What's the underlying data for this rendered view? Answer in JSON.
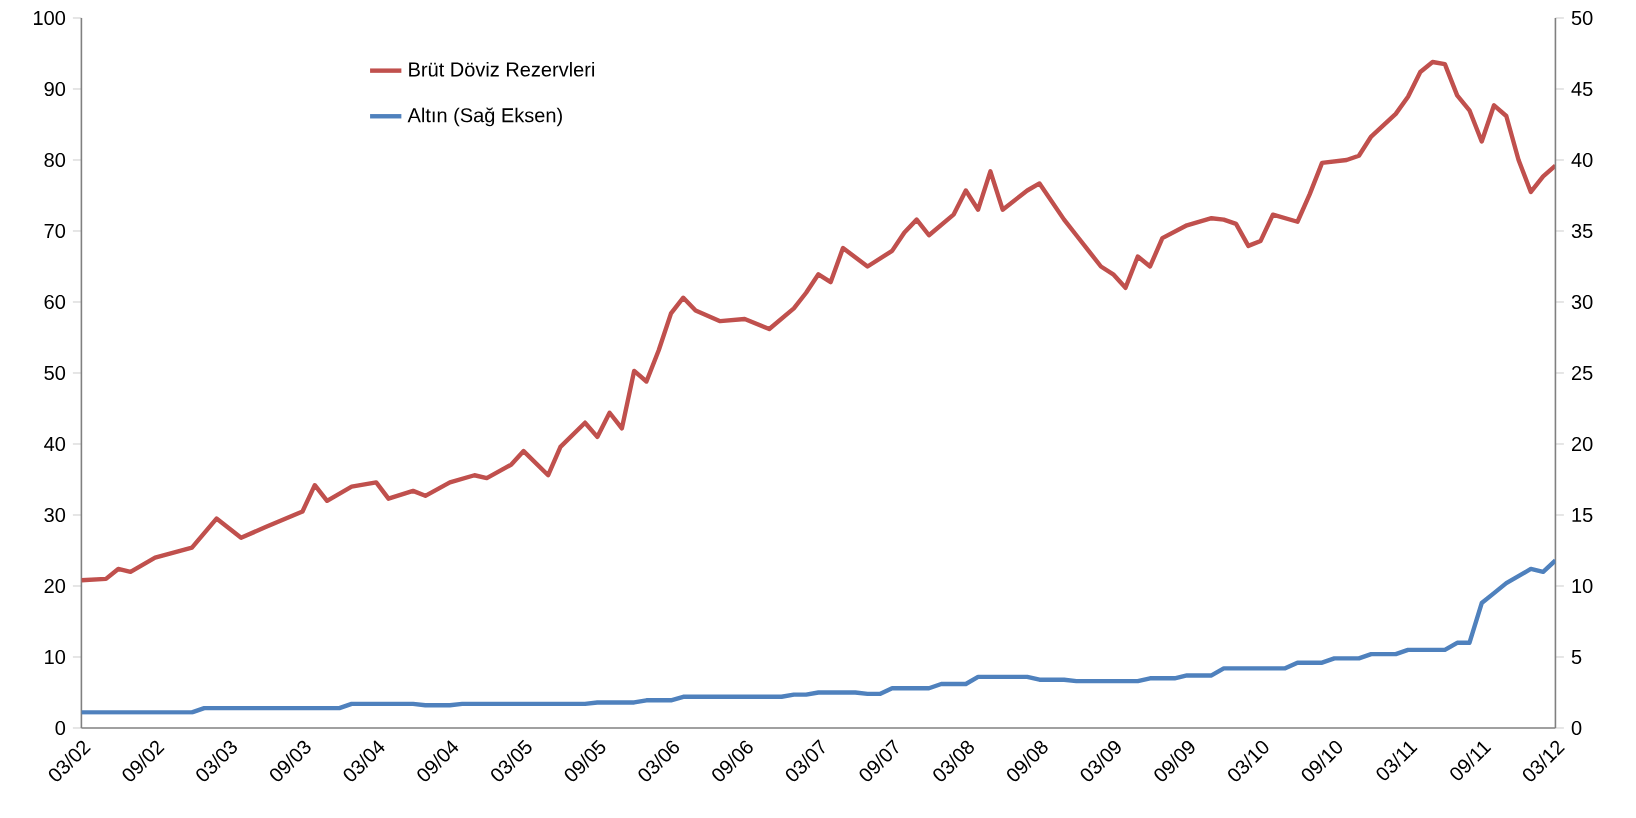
{
  "chart_data": {
    "type": "line",
    "xlim": [
      "2002-03",
      "2012-03"
    ],
    "xticks": [
      {
        "value": "2002-03",
        "label": "03/02"
      },
      {
        "value": "2002-09",
        "label": "09/02"
      },
      {
        "value": "2003-03",
        "label": "03/03"
      },
      {
        "value": "2003-09",
        "label": "09/03"
      },
      {
        "value": "2004-03",
        "label": "03/04"
      },
      {
        "value": "2004-09",
        "label": "09/04"
      },
      {
        "value": "2005-03",
        "label": "03/05"
      },
      {
        "value": "2005-09",
        "label": "09/05"
      },
      {
        "value": "2006-03",
        "label": "03/06"
      },
      {
        "value": "2006-09",
        "label": "09/06"
      },
      {
        "value": "2007-03",
        "label": "03/07"
      },
      {
        "value": "2007-09",
        "label": "09/07"
      },
      {
        "value": "2008-03",
        "label": "03/08"
      },
      {
        "value": "2008-09",
        "label": "09/08"
      },
      {
        "value": "2009-03",
        "label": "03/09"
      },
      {
        "value": "2009-09",
        "label": "09/09"
      },
      {
        "value": "2010-03",
        "label": "03/10"
      },
      {
        "value": "2010-09",
        "label": "09/10"
      },
      {
        "value": "2011-03",
        "label": "03/11"
      },
      {
        "value": "2011-09",
        "label": "09/11"
      },
      {
        "value": "2012-03",
        "label": "03/12"
      }
    ],
    "ylim": [
      0,
      100
    ],
    "yticks": [
      0,
      10,
      20,
      30,
      40,
      50,
      60,
      70,
      80,
      90,
      100
    ],
    "y2lim": [
      0,
      50
    ],
    "y2ticks": [
      0,
      5,
      10,
      15,
      20,
      25,
      30,
      35,
      40,
      45,
      50
    ],
    "legend": "top left",
    "series": [
      {
        "name": "Brüt Döviz Rezervleri",
        "color": "#c0504d",
        "axis": "y",
        "x": [
          "2002-03",
          "2002-05",
          "2002-06",
          "2002-07",
          "2002-09",
          "2002-12",
          "2003-02",
          "2003-04",
          "2003-06",
          "2003-09",
          "2003-10",
          "2003-11",
          "2004-01",
          "2004-03",
          "2004-04",
          "2004-06",
          "2004-07",
          "2004-09",
          "2004-11",
          "2004-12",
          "2005-02",
          "2005-03",
          "2005-05",
          "2005-06",
          "2005-08",
          "2005-09",
          "2005-10",
          "2005-11",
          "2005-12",
          "2006-01",
          "2006-02",
          "2006-03",
          "2006-04",
          "2006-05",
          "2006-07",
          "2006-09",
          "2006-11",
          "2007-01",
          "2007-02",
          "2007-03",
          "2007-04",
          "2007-05",
          "2007-07",
          "2007-09",
          "2007-10",
          "2007-11",
          "2007-12",
          "2008-02",
          "2008-03",
          "2008-04",
          "2008-05",
          "2008-06",
          "2008-08",
          "2008-09",
          "2008-11",
          "2008-12",
          "2009-01",
          "2009-02",
          "2009-03",
          "2009-04",
          "2009-05",
          "2009-06",
          "2009-07",
          "2009-09",
          "2009-11",
          "2009-12",
          "2010-01",
          "2010-02",
          "2010-03",
          "2010-04",
          "2010-06",
          "2010-07",
          "2010-08",
          "2010-10",
          "2010-11",
          "2010-12",
          "2011-02",
          "2011-03",
          "2011-04",
          "2011-05",
          "2011-06",
          "2011-07",
          "2011-08",
          "2011-09",
          "2011-10",
          "2011-11",
          "2011-12",
          "2012-01",
          "2012-02",
          "2012-03"
        ],
        "values": [
          20.8,
          21,
          22.4,
          22,
          24,
          25.4,
          29.5,
          26.8,
          28.3,
          30.5,
          34.2,
          32,
          34,
          34.6,
          32.3,
          33.4,
          32.7,
          34.6,
          35.6,
          35.2,
          37.1,
          39,
          35.6,
          39.6,
          43,
          41,
          44.4,
          42.2,
          50.3,
          48.8,
          53.2,
          58.4,
          60.6,
          58.8,
          57.3,
          57.6,
          56.2,
          59.1,
          61.3,
          63.9,
          62.8,
          67.6,
          65,
          67.2,
          69.8,
          71.6,
          69.4,
          72.3,
          75.7,
          73,
          78.4,
          73,
          75.7,
          76.7,
          71.6,
          69.4,
          67.2,
          65,
          63.9,
          62,
          66.4,
          65,
          69,
          70.8,
          71.8,
          71.6,
          71,
          67.9,
          68.6,
          72.3,
          71.3,
          75.2,
          79.6,
          80,
          80.6,
          83.3,
          86.5,
          88.9,
          92.4,
          93.8,
          93.5,
          89.1,
          87,
          82.6,
          87.7,
          86.2,
          80,
          75.5,
          77.7,
          79.2
        ]
      },
      {
        "name": "Altın (Sağ Eksen)",
        "color": "#4f81bd",
        "axis": "y2",
        "x": [
          "2002-03",
          "2002-12",
          "2003-01",
          "2003-12",
          "2004-01",
          "2004-06",
          "2004-07",
          "2004-09",
          "2004-10",
          "2005-08",
          "2005-09",
          "2005-12",
          "2006-01",
          "2006-03",
          "2006-04",
          "2006-12",
          "2007-01",
          "2007-02",
          "2007-03",
          "2007-06",
          "2007-07",
          "2007-08",
          "2007-09",
          "2007-12",
          "2008-01",
          "2008-03",
          "2008-04",
          "2008-08",
          "2008-09",
          "2008-11",
          "2008-12",
          "2009-05",
          "2009-06",
          "2009-08",
          "2009-09",
          "2009-11",
          "2009-12",
          "2010-05",
          "2010-06",
          "2010-08",
          "2010-09",
          "2010-11",
          "2010-12",
          "2011-02",
          "2011-03",
          "2011-06",
          "2011-07",
          "2011-08",
          "2011-09",
          "2011-10",
          "2011-11",
          "2012-01",
          "2012-02",
          "2012-03"
        ],
        "values": [
          1.1,
          1.1,
          1.4,
          1.4,
          1.7,
          1.7,
          1.6,
          1.6,
          1.7,
          1.7,
          1.8,
          1.8,
          1.95,
          1.95,
          2.2,
          2.2,
          2.35,
          2.35,
          2.5,
          2.5,
          2.4,
          2.4,
          2.8,
          2.8,
          3.1,
          3.1,
          3.6,
          3.6,
          3.4,
          3.4,
          3.3,
          3.3,
          3.5,
          3.5,
          3.7,
          3.7,
          4.2,
          4.2,
          4.6,
          4.6,
          4.9,
          4.9,
          5.2,
          5.2,
          5.5,
          5.5,
          6.0,
          6.0,
          8.8,
          9.5,
          10.2,
          11.2,
          11.0,
          11.8
        ]
      }
    ]
  }
}
